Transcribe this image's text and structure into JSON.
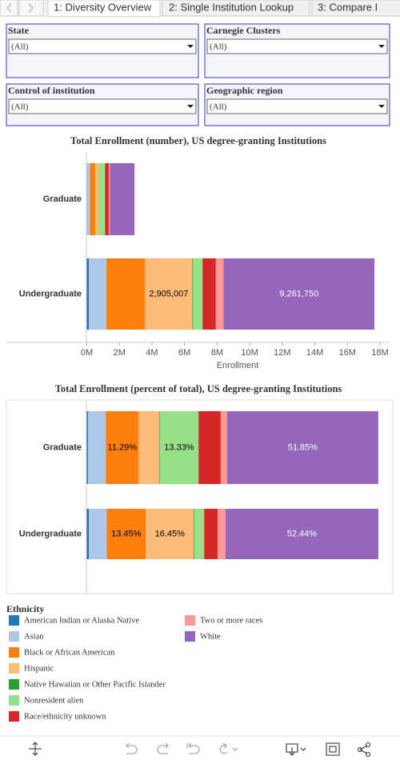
{
  "tabs": [
    "1: Diversity Overview",
    "2: Single Institution Lookup",
    "3: Compare I"
  ],
  "filters": [
    {
      "label": "State",
      "value": "(All)"
    },
    {
      "label": "Carnegie Clusters",
      "value": "(All)"
    },
    {
      "label": "Control of institution",
      "value": "(All)"
    },
    {
      "label": "Geographic region",
      "value": "(All)"
    }
  ],
  "legend_title": "Ethnicity",
  "chart_data": [
    {
      "type": "stacked-bar-horizontal",
      "title": "Total Enrollment (number), US degree-granting Institutions",
      "categories": [
        "Graduate",
        "Undergraduate"
      ],
      "x_label": "Enrollment",
      "xlim": [
        0,
        18000000
      ],
      "xticks": [
        {
          "value": 0,
          "label": "0M"
        },
        {
          "value": 2000000,
          "label": "2M"
        },
        {
          "value": 4000000,
          "label": "4M"
        },
        {
          "value": 6000000,
          "label": "6M"
        },
        {
          "value": 8000000,
          "label": "8M"
        },
        {
          "value": 10000000,
          "label": "10M"
        },
        {
          "value": 12000000,
          "label": "12M"
        },
        {
          "value": 14000000,
          "label": "14M"
        },
        {
          "value": 16000000,
          "label": "16M"
        },
        {
          "value": 18000000,
          "label": "18M"
        }
      ],
      "series": [
        {
          "name": "American Indian or Alaska Native",
          "color": "#1f77b4",
          "values": [
            12000,
            124000
          ],
          "value_labels": [
            null,
            null
          ]
        },
        {
          "name": "Asian",
          "color": "#aec7e8",
          "values": [
            179000,
            1077000
          ],
          "value_labels": [
            null,
            null
          ]
        },
        {
          "name": "Black or African American",
          "color": "#ff7f0e",
          "values": [
            331000,
            2375000
          ],
          "value_labels": [
            null,
            null
          ]
        },
        {
          "name": "Hispanic",
          "color": "#ffbb78",
          "values": [
            205000,
            2905007
          ],
          "value_labels": [
            null,
            "2,905,007"
          ]
        },
        {
          "name": "Native Hawaiian or Other Pacific Islander",
          "color": "#2ca02c",
          "values": [
            6000,
            44000
          ],
          "value_labels": [
            null,
            null
          ]
        },
        {
          "name": "Nonresident alien",
          "color": "#98df8a",
          "values": [
            391000,
            583000
          ],
          "value_labels": [
            null,
            null
          ]
        },
        {
          "name": "Race/ethnicity unknown",
          "color": "#d62728",
          "values": [
            223000,
            812000
          ],
          "value_labels": [
            null,
            null
          ]
        },
        {
          "name": "Two or more races",
          "color": "#ff9896",
          "values": [
            64000,
            477000
          ],
          "value_labels": [
            null,
            null
          ]
        },
        {
          "name": "White",
          "color": "#9467bd",
          "values": [
            1519000,
            9261750
          ],
          "value_labels": [
            null,
            "9,261,750"
          ]
        }
      ]
    },
    {
      "type": "stacked-bar-horizontal",
      "title": "Total Enrollment (percent of total), US degree-granting Institutions",
      "categories": [
        "Graduate",
        "Undergraduate"
      ],
      "xlim": [
        0,
        100
      ],
      "series": [
        {
          "name": "American Indian or Alaska Native",
          "color": "#1f77b4",
          "values": [
            0.4,
            0.7
          ],
          "value_labels": [
            null,
            null
          ]
        },
        {
          "name": "Asian",
          "color": "#aec7e8",
          "values": [
            6.1,
            6.1
          ],
          "value_labels": [
            null,
            null
          ]
        },
        {
          "name": "Black or African American",
          "color": "#ff7f0e",
          "values": [
            11.29,
            13.45
          ],
          "value_labels": [
            "11.29%",
            "13.45%"
          ]
        },
        {
          "name": "Hispanic",
          "color": "#ffbb78",
          "values": [
            7.0,
            16.45
          ],
          "value_labels": [
            null,
            "16.45%"
          ]
        },
        {
          "name": "Native Hawaiian or Other Pacific Islander",
          "color": "#2ca02c",
          "values": [
            0.2,
            0.25
          ],
          "value_labels": [
            null,
            null
          ]
        },
        {
          "name": "Nonresident alien",
          "color": "#98df8a",
          "values": [
            13.33,
            3.3
          ],
          "value_labels": [
            "13.33%",
            null
          ]
        },
        {
          "name": "Race/ethnicity unknown",
          "color": "#d62728",
          "values": [
            7.6,
            4.6
          ],
          "value_labels": [
            null,
            null
          ]
        },
        {
          "name": "Two or more races",
          "color": "#ff9896",
          "values": [
            2.2,
            2.7
          ],
          "value_labels": [
            null,
            null
          ]
        },
        {
          "name": "White",
          "color": "#9467bd",
          "values": [
            51.85,
            52.44
          ],
          "value_labels": [
            "51.85%",
            "52.44%"
          ]
        }
      ]
    }
  ]
}
